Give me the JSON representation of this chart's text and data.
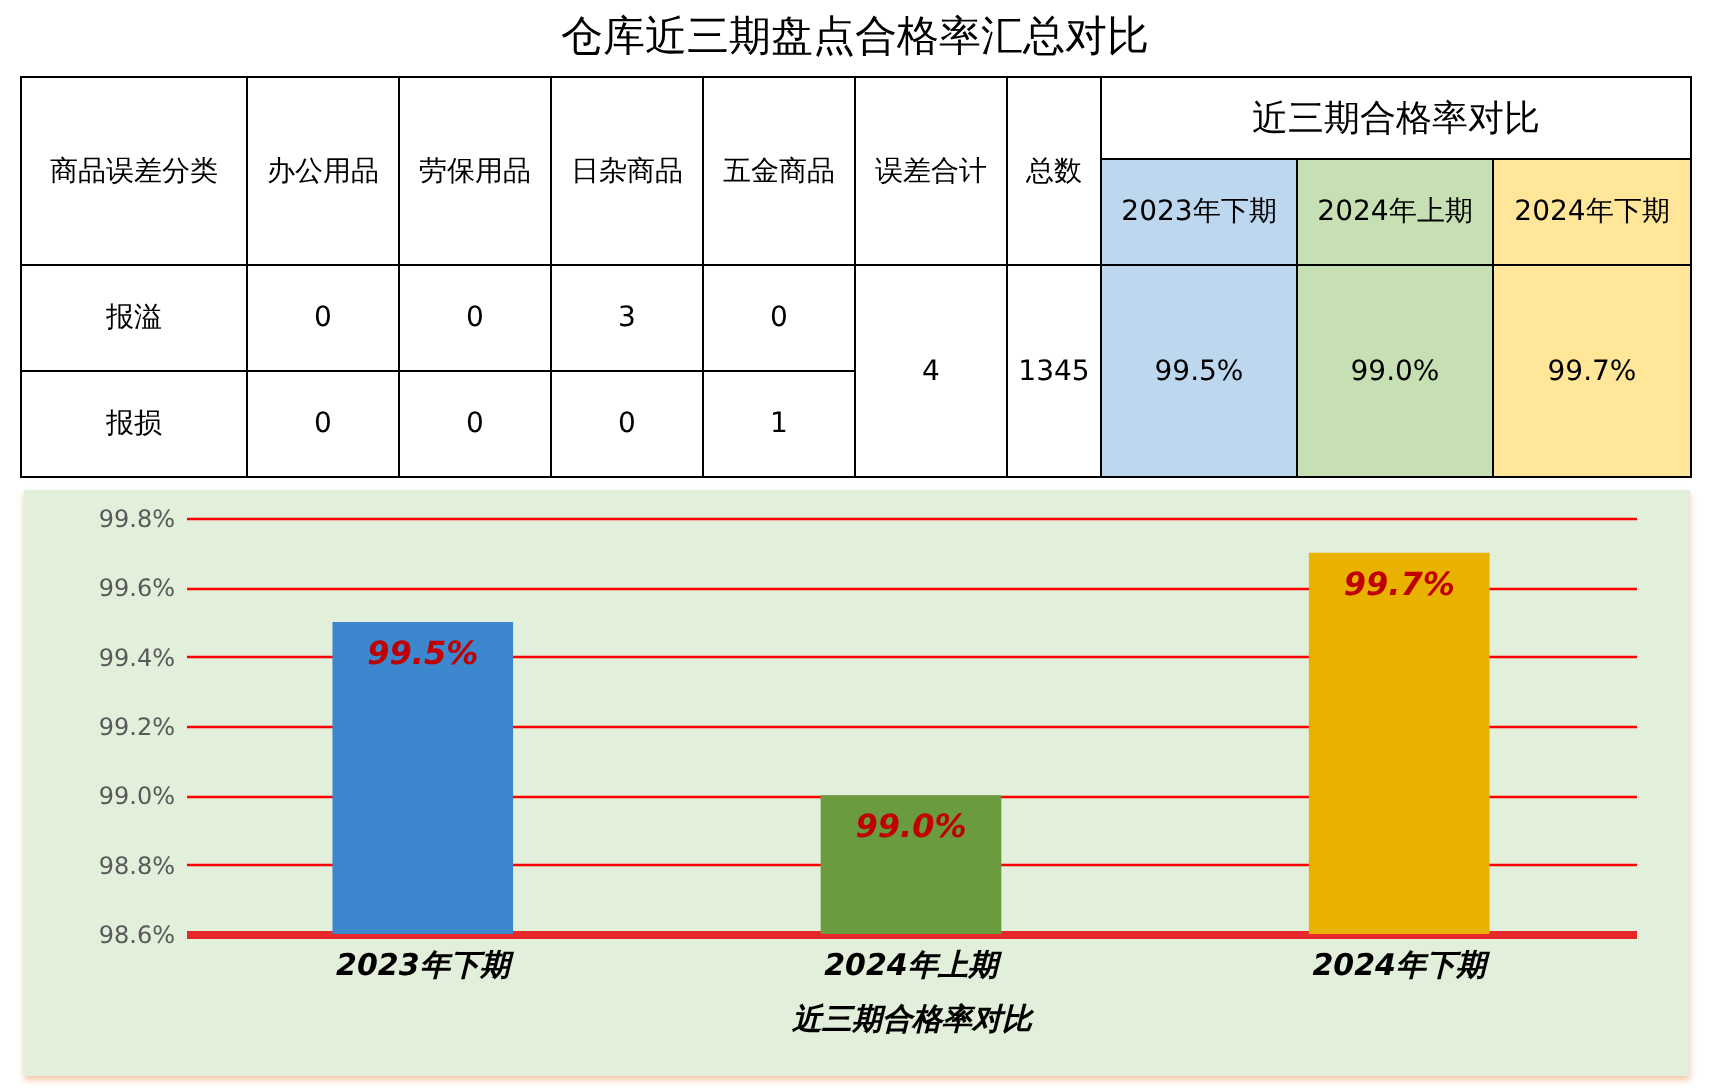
{
  "chart_data": [
    {
      "type": "other",
      "title": "仓库近三期盘点合格率汇总对比",
      "annotations": [
        "商品误差分类",
        "办公用品",
        "劳保用品",
        "日杂商品",
        "五金商品",
        "误差合计",
        "总数",
        "近三期合格率对比",
        "2023年下期",
        "2024年上期",
        "2024年下期",
        "报溢",
        "0",
        "0",
        "3",
        "0",
        "4",
        "1345",
        "99.5%",
        "99.0%",
        "99.7%",
        "报损",
        "0",
        "0",
        "0",
        "1"
      ]
    },
    {
      "type": "bar",
      "xlabel": "近三期合格率对比",
      "categories": [
        "2023年下期",
        "2024年上期",
        "2024年下期"
      ],
      "values": [
        99.5,
        99.0,
        99.7
      ],
      "colors": [
        "#3d87cf",
        "#6a9b3e",
        "#eab200"
      ],
      "value_labels": [
        "99.5%",
        "99.0%",
        "99.7%"
      ],
      "ylim": [
        98.6,
        99.8
      ],
      "yticks": [
        {
          "value": 98.6,
          "label": "98.6%"
        },
        {
          "value": 98.8,
          "label": "98.8%"
        },
        {
          "value": 99.0,
          "label": "99.0%"
        },
        {
          "value": 99.2,
          "label": "99.2%"
        },
        {
          "value": 99.4,
          "label": "99.4%"
        },
        {
          "value": 99.6,
          "label": "99.6%"
        },
        {
          "value": 99.8,
          "label": "99.8%"
        }
      ],
      "grid": "y",
      "legend": false
    }
  ]
}
